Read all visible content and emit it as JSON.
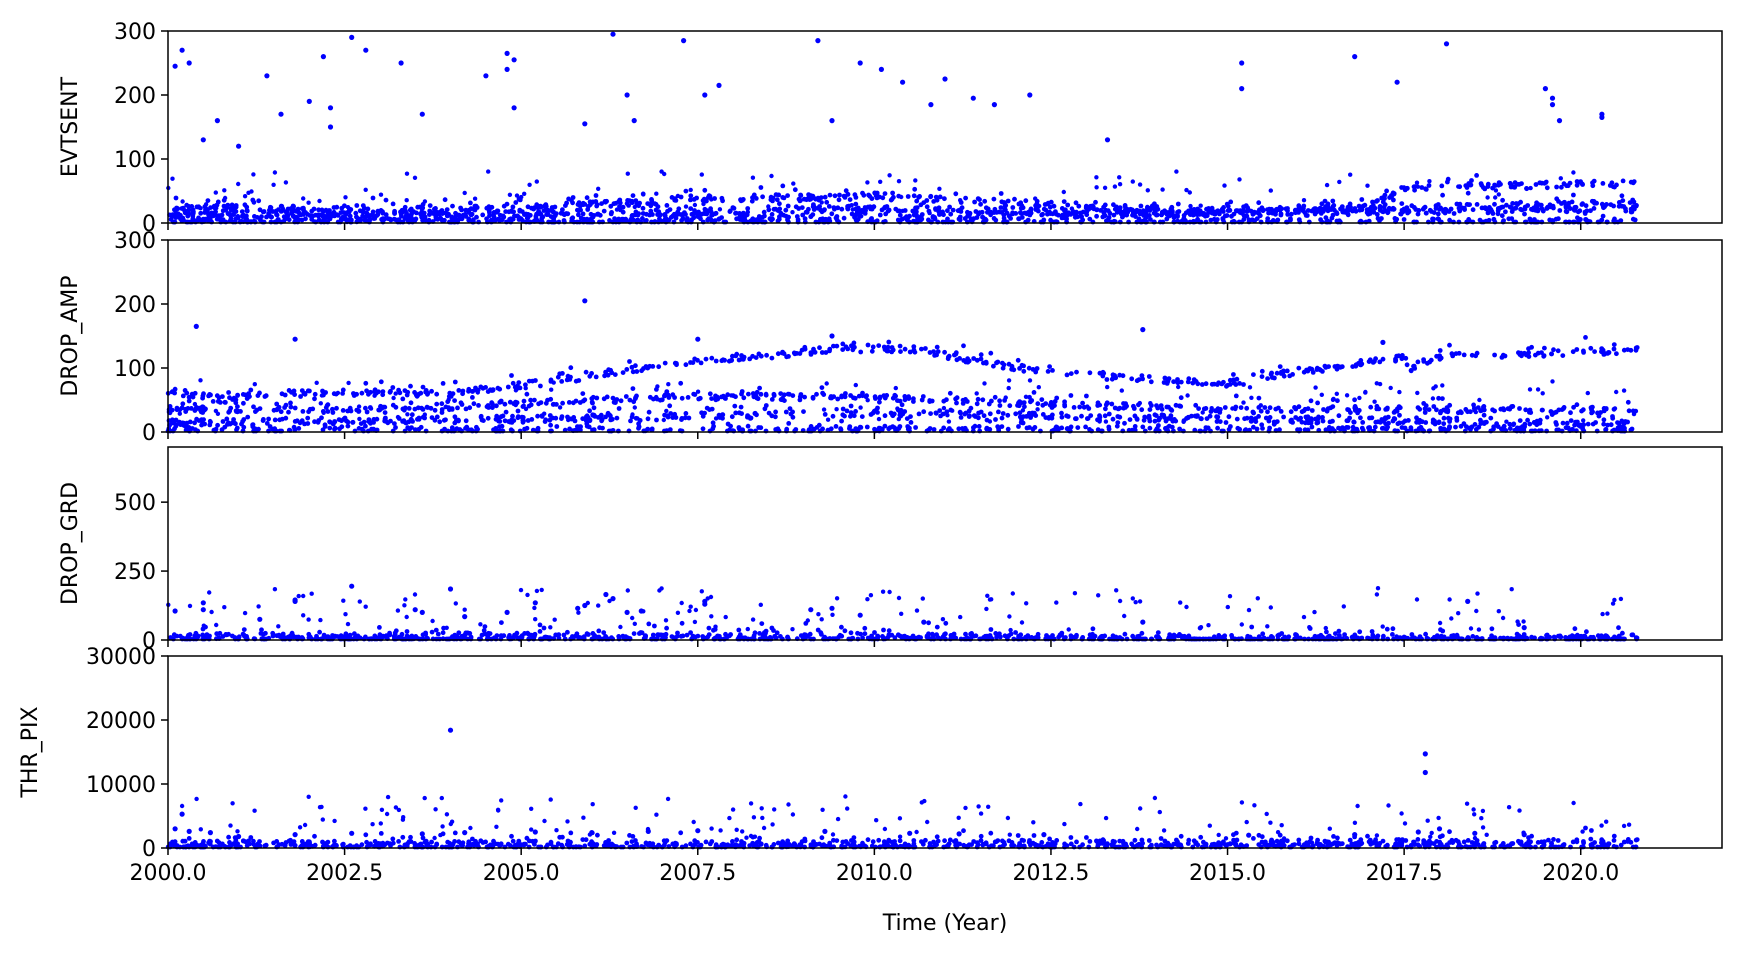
{
  "chart_data": [
    {
      "type": "scatter",
      "ylabel": "EVTSENT",
      "ylim": [
        0,
        300
      ],
      "yticks": [
        "0",
        "100",
        "200",
        "300"
      ],
      "xlim": [
        2000.0,
        2022.0
      ],
      "color": "#0000ff",
      "baseline_bands": [
        {
          "x": [
            2000.0,
            2002.5,
            2005.0,
            2007.5,
            2010.0,
            2012.5,
            2015.0,
            2017.0,
            2017.5,
            2020.8
          ],
          "y": [
            25,
            20,
            22,
            38,
            42,
            28,
            18,
            25,
            55,
            62
          ]
        },
        {
          "x": [
            2000.0,
            2005.0,
            2010.0,
            2015.0,
            2020.8
          ],
          "y": [
            15,
            15,
            22,
            15,
            32
          ]
        },
        {
          "x": [
            2000.0,
            2010.0,
            2020.8
          ],
          "y": [
            8,
            10,
            22
          ]
        },
        {
          "x": [
            2000.0,
            2020.8
          ],
          "y": [
            2,
            2
          ]
        }
      ],
      "outliers": [
        [
          2000.1,
          245
        ],
        [
          2000.2,
          270
        ],
        [
          2000.3,
          250
        ],
        [
          2000.5,
          130
        ],
        [
          2000.7,
          160
        ],
        [
          2001.0,
          120
        ],
        [
          2001.4,
          230
        ],
        [
          2001.6,
          170
        ],
        [
          2002.0,
          190
        ],
        [
          2002.2,
          260
        ],
        [
          2002.3,
          180
        ],
        [
          2002.3,
          150
        ],
        [
          2002.6,
          290
        ],
        [
          2002.8,
          270
        ],
        [
          2003.3,
          250
        ],
        [
          2003.6,
          170
        ],
        [
          2004.5,
          230
        ],
        [
          2004.8,
          240
        ],
        [
          2004.8,
          265
        ],
        [
          2004.9,
          255
        ],
        [
          2004.9,
          180
        ],
        [
          2005.9,
          155
        ],
        [
          2006.3,
          295
        ],
        [
          2006.5,
          200
        ],
        [
          2006.6,
          160
        ],
        [
          2007.3,
          285
        ],
        [
          2007.6,
          200
        ],
        [
          2007.8,
          215
        ],
        [
          2009.2,
          285
        ],
        [
          2009.4,
          160
        ],
        [
          2009.8,
          250
        ],
        [
          2010.1,
          240
        ],
        [
          2010.4,
          220
        ],
        [
          2010.8,
          185
        ],
        [
          2011.0,
          225
        ],
        [
          2011.4,
          195
        ],
        [
          2011.7,
          185
        ],
        [
          2012.2,
          200
        ],
        [
          2013.3,
          130
        ],
        [
          2015.2,
          250
        ],
        [
          2015.2,
          210
        ],
        [
          2016.8,
          260
        ],
        [
          2017.4,
          220
        ],
        [
          2018.1,
          280
        ],
        [
          2019.5,
          210
        ],
        [
          2019.6,
          195
        ],
        [
          2019.6,
          185
        ],
        [
          2019.7,
          160
        ],
        [
          2020.3,
          170
        ],
        [
          2020.3,
          165
        ]
      ]
    },
    {
      "type": "scatter",
      "ylabel": "DROP_AMP",
      "ylim": [
        0,
        300
      ],
      "yticks": [
        "0",
        "100",
        "200",
        "300"
      ],
      "xlim": [
        2000.0,
        2022.0
      ],
      "color": "#0000ff",
      "baseline_bands": [
        {
          "x": [
            2000.0,
            2000.8,
            2001.5,
            2003.0,
            2004.0,
            2005.5,
            2007.0,
            2008.0,
            2009.5,
            2010.5,
            2012.0,
            2013.5,
            2015.0,
            2016.0,
            2017.5,
            2017.6,
            2018.0,
            2020.8
          ],
          "y": [
            65,
            50,
            60,
            62,
            60,
            80,
            105,
            115,
            130,
            130,
            100,
            85,
            75,
            95,
            115,
            100,
            118,
            128
          ]
        },
        {
          "x": [
            2000.0,
            2003.0,
            2005.0,
            2007.5,
            2010.0,
            2012.0,
            2015.0,
            2020.8
          ],
          "y": [
            35,
            35,
            45,
            55,
            55,
            45,
            35,
            35
          ]
        },
        {
          "x": [
            2000.0,
            2005.0,
            2010.0,
            2015.0,
            2020.8
          ],
          "y": [
            15,
            20,
            30,
            20,
            15
          ]
        },
        {
          "x": [
            2000.0,
            2020.8
          ],
          "y": [
            4,
            4
          ]
        }
      ],
      "outliers": [
        [
          2000.4,
          165
        ],
        [
          2001.8,
          145
        ],
        [
          2005.9,
          205
        ],
        [
          2013.8,
          160
        ],
        [
          2007.5,
          145
        ],
        [
          2009.4,
          150
        ],
        [
          2017.2,
          140
        ]
      ]
    },
    {
      "type": "scatter",
      "ylabel": "DROP_GRD",
      "ylim": [
        0,
        700
      ],
      "yticks": [
        "0",
        "250",
        "500"
      ],
      "xlim": [
        2000.0,
        2022.0
      ],
      "color": "#0000ff",
      "baseline_bands": [
        {
          "x": [
            2000.0,
            2005.0,
            2010.0,
            2015.0,
            2020.8
          ],
          "y": [
            12,
            15,
            15,
            8,
            8
          ]
        },
        {
          "x": [
            2000.0,
            2020.8
          ],
          "y": [
            3,
            3
          ]
        }
      ],
      "outliers": [
        [
          2000.1,
          105
        ],
        [
          2000.5,
          135
        ],
        [
          2000.5,
          110
        ],
        [
          2001.3,
          75
        ],
        [
          2001.8,
          145
        ],
        [
          2001.8,
          140
        ],
        [
          2002.6,
          195
        ],
        [
          2003.5,
          110
        ],
        [
          2003.6,
          100
        ],
        [
          2004.0,
          185
        ],
        [
          2004.2,
          85
        ],
        [
          2004.8,
          100
        ],
        [
          2005.2,
          135
        ],
        [
          2005.8,
          115
        ],
        [
          2005.9,
          125
        ],
        [
          2006.2,
          165
        ],
        [
          2006.3,
          150
        ],
        [
          2006.5,
          100
        ],
        [
          2006.7,
          105
        ],
        [
          2007.6,
          140
        ],
        [
          2007.6,
          130
        ],
        [
          2009.1,
          110
        ],
        [
          2009.4,
          115
        ],
        [
          2009.8,
          90
        ],
        [
          2010.7,
          65
        ],
        [
          2013.8,
          65
        ],
        [
          2018.4,
          140
        ],
        [
          2019.2,
          45
        ]
      ]
    },
    {
      "type": "scatter",
      "ylabel": "THR_PIX",
      "xlabel": "Time (Year)",
      "ylim": [
        0,
        30000
      ],
      "yticks": [
        "0",
        "10000",
        "20000",
        "30000"
      ],
      "xlim": [
        2000.0,
        2022.0
      ],
      "xticks": [
        "2000.0",
        "2002.5",
        "2005.0",
        "2007.5",
        "2010.0",
        "2012.5",
        "2015.0",
        "2017.5",
        "2020.0"
      ],
      "color": "#0000ff",
      "baseline_bands": [
        {
          "x": [
            2000.0,
            2005.0,
            2010.0,
            2015.0,
            2020.8
          ],
          "y": [
            600,
            650,
            700,
            750,
            900
          ]
        },
        {
          "x": [
            2000.0,
            2020.8
          ],
          "y": [
            150,
            200
          ]
        }
      ],
      "outliers": [
        [
          2000.2,
          5300
        ],
        [
          2000.1,
          3000
        ],
        [
          2000.3,
          2600
        ],
        [
          2000.6,
          2400
        ],
        [
          2001.0,
          1800
        ],
        [
          2001.8,
          2100
        ],
        [
          2002.6,
          2300
        ],
        [
          2003.6,
          2200
        ],
        [
          2004.0,
          18400
        ],
        [
          2004.2,
          2400
        ],
        [
          2005.2,
          2500
        ],
        [
          2006.0,
          2400
        ],
        [
          2006.8,
          2600
        ],
        [
          2007.5,
          2700
        ],
        [
          2009.3,
          2600
        ],
        [
          2010.5,
          2300
        ],
        [
          2011.2,
          2200
        ],
        [
          2012.4,
          2100
        ],
        [
          2015.3,
          2000
        ],
        [
          2016.8,
          2100
        ],
        [
          2017.8,
          14700
        ],
        [
          2017.8,
          11800
        ],
        [
          2017.7,
          2500
        ],
        [
          2018.0,
          3000
        ],
        [
          2018.5,
          2300
        ],
        [
          2019.2,
          2100
        ]
      ]
    }
  ]
}
